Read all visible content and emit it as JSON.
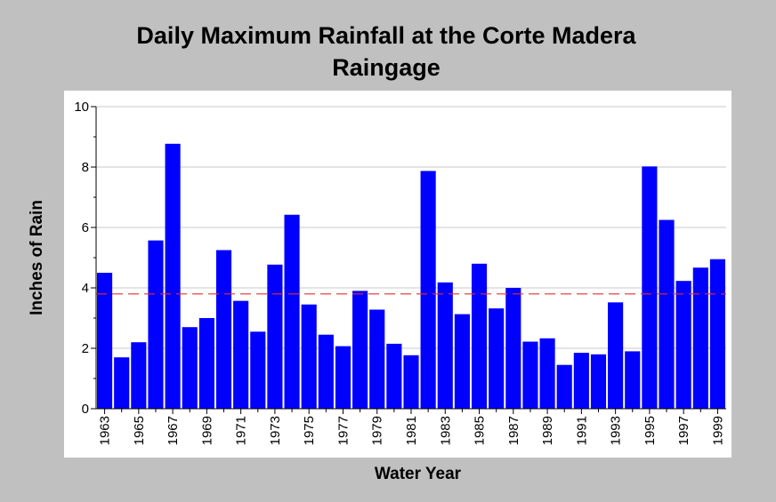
{
  "chart_data": {
    "type": "bar",
    "title_lines": [
      "Daily Maximum Rainfall at the Corte Madera",
      "Raingage"
    ],
    "xlabel": "Water Year",
    "ylabel": "Inches of Rain",
    "ylim": [
      0,
      10
    ],
    "y_ticks": [
      0,
      2,
      4,
      6,
      8,
      10
    ],
    "x_tick_labels": [
      "1963",
      "1965",
      "1967",
      "1969",
      "1971",
      "1973",
      "1975",
      "1977",
      "1979",
      "1981",
      "1983",
      "1985",
      "1987",
      "1989",
      "1991",
      "1993",
      "1995",
      "1997",
      "1999"
    ],
    "categories": [
      "1963",
      "1964",
      "1965",
      "1966",
      "1967",
      "1968",
      "1969",
      "1970",
      "1971",
      "1972",
      "1973",
      "1974",
      "1975",
      "1976",
      "1977",
      "1978",
      "1979",
      "1980",
      "1981",
      "1982",
      "1983",
      "1984",
      "1985",
      "1986",
      "1987",
      "1988",
      "1989",
      "1990",
      "1991",
      "1992",
      "1993",
      "1994",
      "1995",
      "1996",
      "1997",
      "1998",
      "1999"
    ],
    "values": [
      4.5,
      1.7,
      2.2,
      5.57,
      8.77,
      2.7,
      3.0,
      5.25,
      3.57,
      2.55,
      4.77,
      6.42,
      3.45,
      2.45,
      2.07,
      3.9,
      3.28,
      2.15,
      1.77,
      7.87,
      4.18,
      3.13,
      4.8,
      3.32,
      4.0,
      2.22,
      2.33,
      1.45,
      1.85,
      1.8,
      3.52,
      1.9,
      8.02,
      6.25,
      4.23,
      4.67,
      4.95
    ],
    "reference_line": 3.8,
    "grid": "horizontal",
    "colors": {
      "bar": "#0000ff",
      "reference_line": "#e03030",
      "grid": "#c8c8c8",
      "background": "#c0c0c0",
      "plot_background": "#ffffff"
    }
  }
}
